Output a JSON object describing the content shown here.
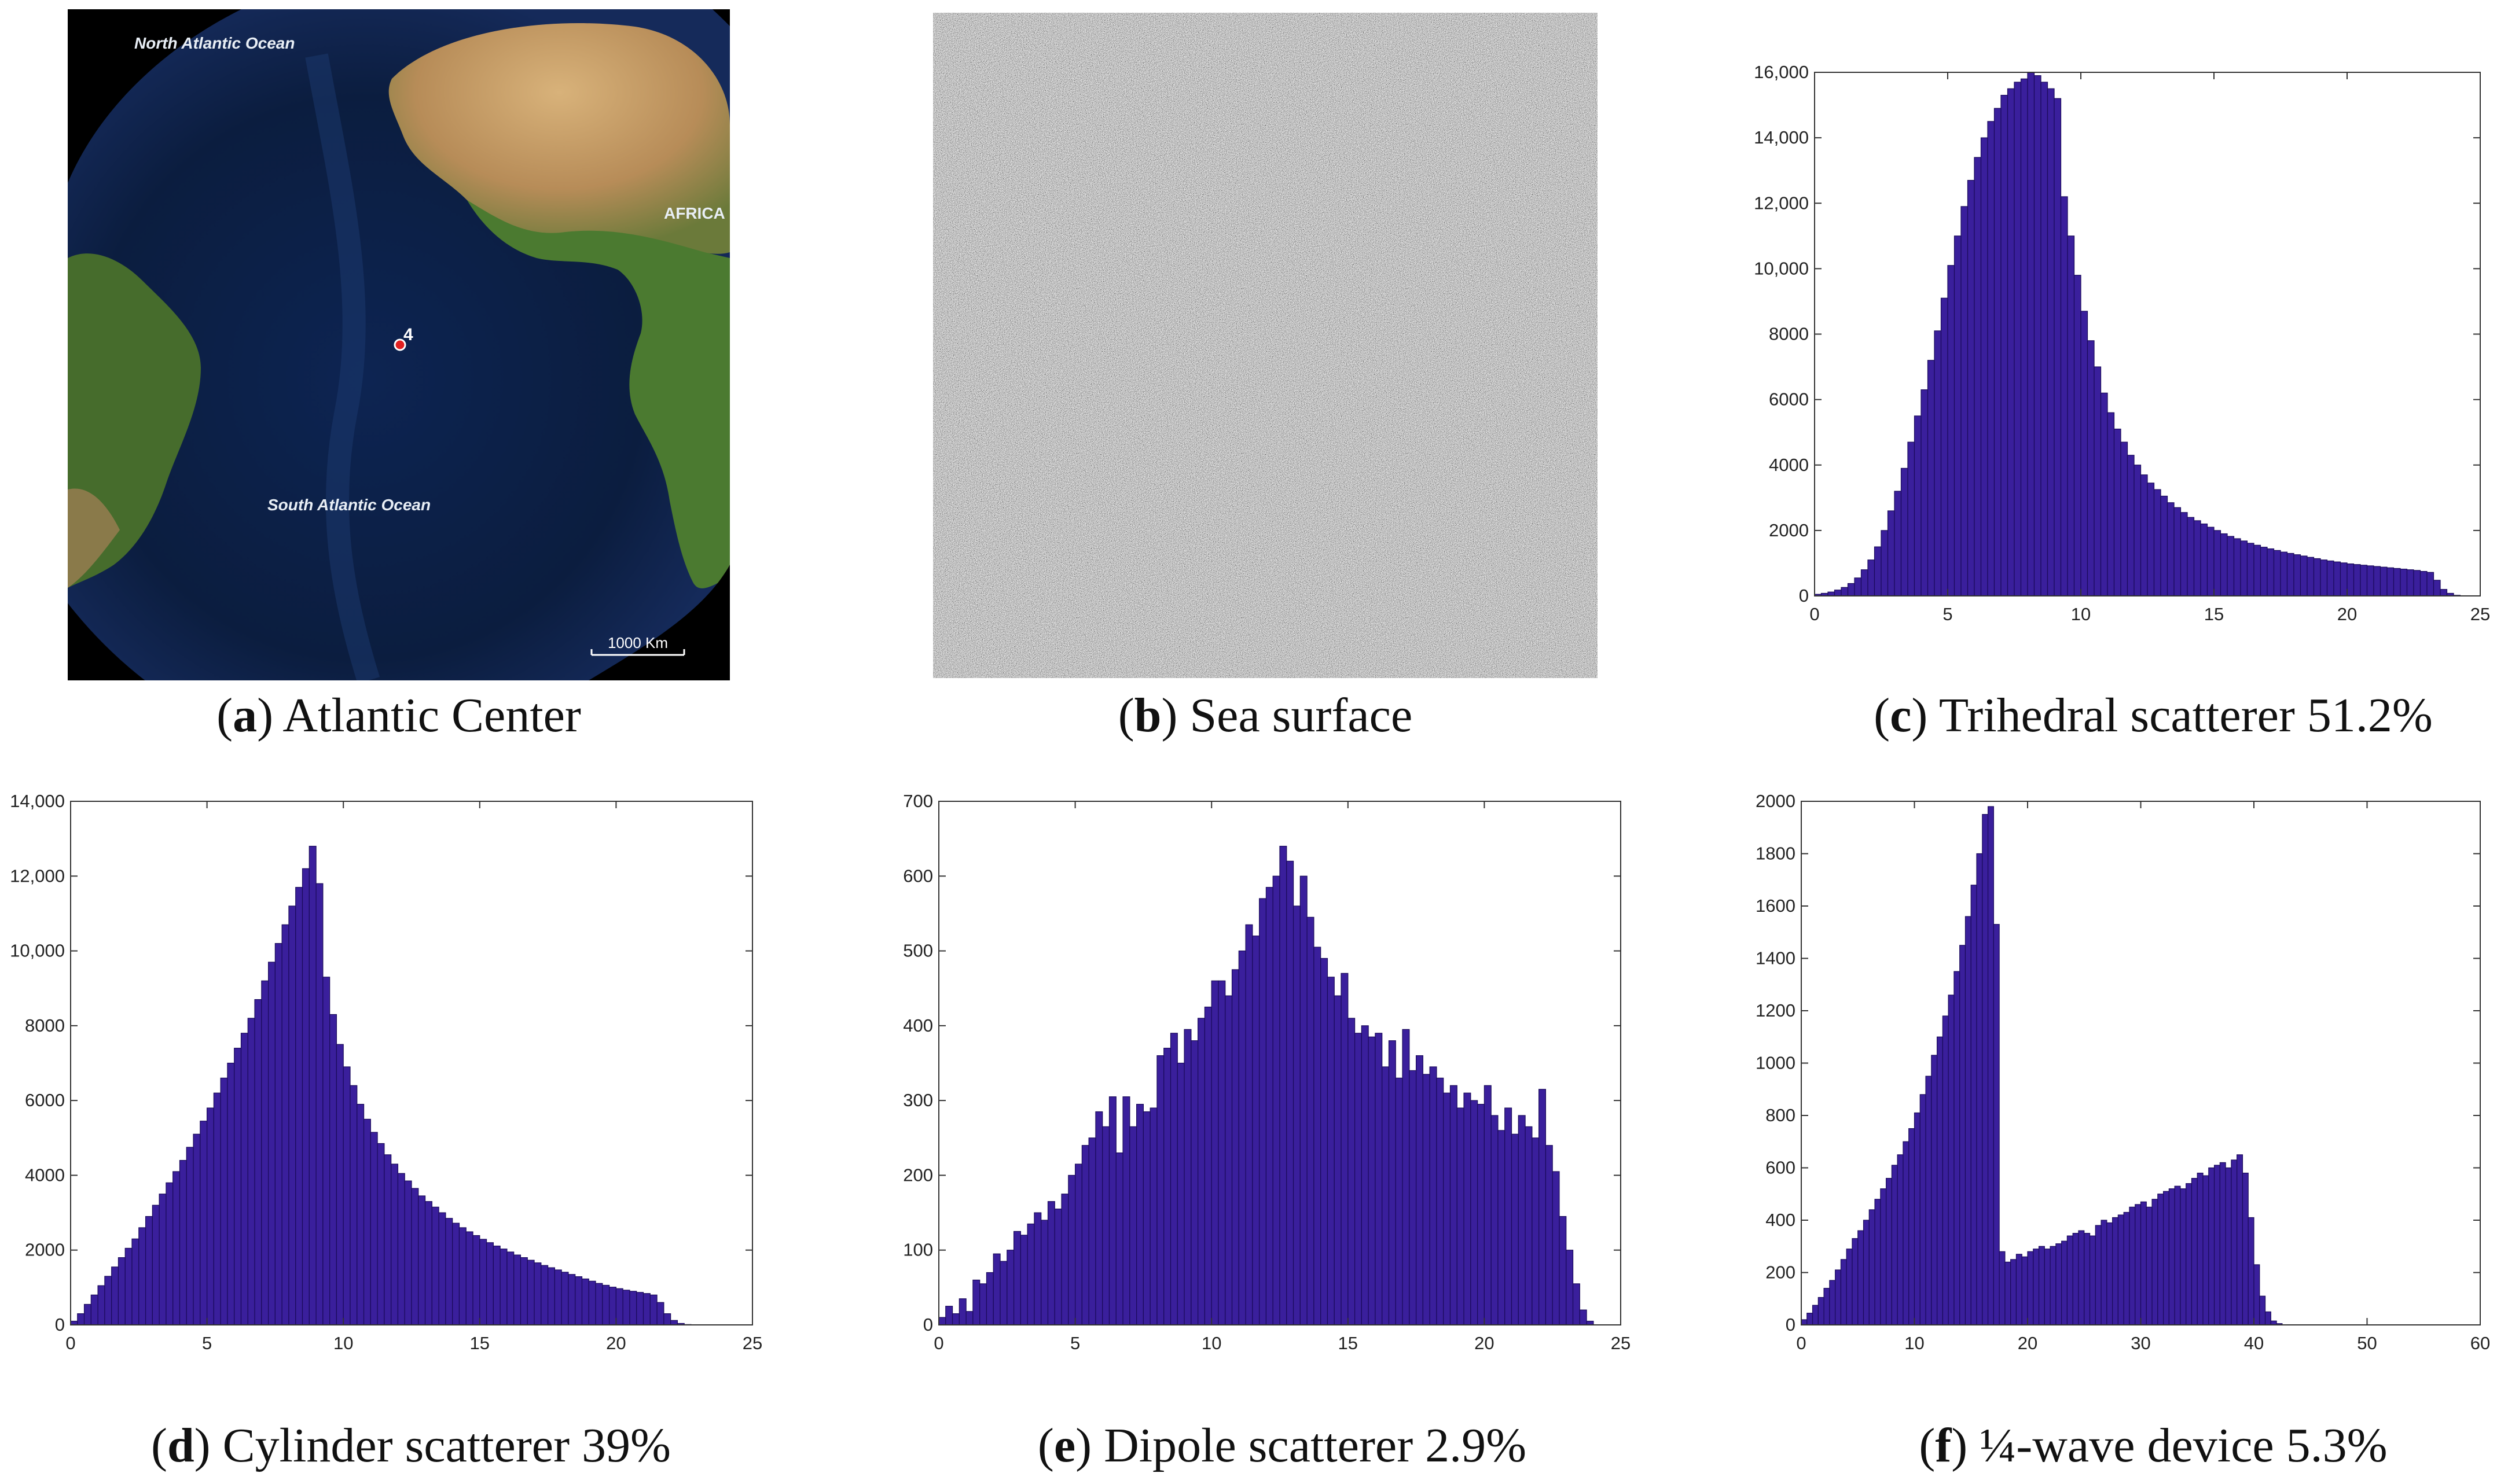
{
  "figure": {
    "panel_a": {
      "letter": "a",
      "caption": "Atlantic Center",
      "map_labels": {
        "north": "North Atlantic Ocean",
        "south": "South Atlantic Ocean",
        "africa": "AFRICA",
        "marker": "4",
        "scale": "1000 Km"
      },
      "colors": {
        "ocean": "#0b1d3f",
        "land": "#8a6a3c",
        "vegetation": "#3f6a2a"
      }
    },
    "panel_b": {
      "letter": "b",
      "caption": "Sea surface"
    },
    "panel_c": {
      "letter": "c",
      "caption": "Trihedral scatterer 51.2%"
    },
    "panel_d": {
      "letter": "d",
      "caption": "Cylinder scatterer 39%"
    },
    "panel_e": {
      "letter": "e",
      "caption": "Dipole scatterer 2.9%"
    },
    "panel_f": {
      "letter": "f",
      "caption": "¼-wave device 5.3%"
    }
  },
  "bar_color": "#3a1f9c",
  "chart_data": [
    {
      "id": "c",
      "type": "bar",
      "title": "Trihedral scatterer 51.2%",
      "xlim": [
        0,
        25
      ],
      "ylim": [
        0,
        16000
      ],
      "xticks": [
        0,
        5,
        10,
        15,
        20,
        25
      ],
      "yticks": [
        0,
        2000,
        4000,
        6000,
        8000,
        10000,
        12000,
        14000,
        16000
      ],
      "ytick_labels": [
        "0",
        "2000",
        "4000",
        "6000",
        "8000",
        "10,000",
        "12,000",
        "14,000",
        "16,000"
      ],
      "bin_start": 0,
      "bin_width": 0.25,
      "values": [
        50,
        80,
        120,
        180,
        260,
        380,
        550,
        800,
        1100,
        1500,
        2000,
        2600,
        3200,
        3900,
        4700,
        5500,
        6300,
        7200,
        8100,
        9100,
        10100,
        11000,
        11900,
        12700,
        13400,
        14000,
        14500,
        14900,
        15300,
        15500,
        15700,
        15800,
        16000,
        15900,
        15700,
        15500,
        15200,
        12200,
        11000,
        9800,
        8700,
        7800,
        7000,
        6200,
        5600,
        5100,
        4700,
        4300,
        4000,
        3700,
        3450,
        3250,
        3050,
        2850,
        2700,
        2550,
        2400,
        2300,
        2200,
        2100,
        2000,
        1900,
        1820,
        1750,
        1680,
        1610,
        1550,
        1490,
        1440,
        1390,
        1340,
        1300,
        1260,
        1220,
        1180,
        1140,
        1100,
        1070,
        1040,
        1010,
        980,
        960,
        940,
        920,
        900,
        880,
        860,
        840,
        820,
        800,
        780,
        750,
        720,
        480,
        200,
        80,
        20,
        0,
        0,
        0,
        0
      ]
    },
    {
      "id": "d",
      "type": "bar",
      "title": "Cylinder scatterer 39%",
      "xlim": [
        0,
        25
      ],
      "ylim": [
        0,
        14000
      ],
      "xticks": [
        0,
        5,
        10,
        15,
        20,
        25
      ],
      "yticks": [
        0,
        2000,
        4000,
        6000,
        8000,
        10000,
        12000,
        14000
      ],
      "ytick_labels": [
        "0",
        "2000",
        "4000",
        "6000",
        "8000",
        "10,000",
        "12,000",
        "14,000"
      ],
      "bin_start": 0,
      "bin_width": 0.25,
      "values": [
        100,
        300,
        550,
        800,
        1050,
        1300,
        1550,
        1800,
        2050,
        2300,
        2600,
        2900,
        3200,
        3500,
        3800,
        4100,
        4400,
        4750,
        5100,
        5450,
        5800,
        6200,
        6600,
        7000,
        7400,
        7800,
        8200,
        8700,
        9200,
        9700,
        10200,
        10700,
        11200,
        11700,
        12200,
        12800,
        11800,
        9300,
        8300,
        7500,
        6900,
        6400,
        5900,
        5500,
        5150,
        4850,
        4550,
        4300,
        4050,
        3850,
        3650,
        3450,
        3300,
        3150,
        3000,
        2850,
        2720,
        2600,
        2490,
        2390,
        2290,
        2200,
        2110,
        2030,
        1950,
        1870,
        1800,
        1730,
        1660,
        1590,
        1530,
        1470,
        1410,
        1350,
        1290,
        1230,
        1170,
        1110,
        1060,
        1010,
        970,
        930,
        900,
        870,
        840,
        800,
        600,
        300,
        120,
        40,
        10,
        0,
        0,
        0,
        0,
        0,
        0,
        0,
        0,
        0,
        0
      ]
    },
    {
      "id": "e",
      "type": "bar",
      "title": "Dipole scatterer 2.9%",
      "xlim": [
        0,
        25
      ],
      "ylim": [
        0,
        700
      ],
      "xticks": [
        0,
        5,
        10,
        15,
        20,
        25
      ],
      "yticks": [
        0,
        100,
        200,
        300,
        400,
        500,
        600,
        700
      ],
      "ytick_labels": [
        "0",
        "100",
        "200",
        "300",
        "400",
        "500",
        "600",
        "700"
      ],
      "bin_start": 0,
      "bin_width": 0.25,
      "values": [
        10,
        25,
        15,
        35,
        18,
        60,
        55,
        70,
        95,
        85,
        100,
        125,
        120,
        135,
        150,
        140,
        165,
        155,
        175,
        200,
        215,
        240,
        250,
        285,
        265,
        305,
        230,
        305,
        265,
        295,
        285,
        290,
        360,
        370,
        390,
        350,
        395,
        380,
        410,
        425,
        460,
        460,
        440,
        475,
        500,
        535,
        520,
        570,
        585,
        600,
        640,
        620,
        560,
        600,
        545,
        505,
        490,
        465,
        440,
        470,
        410,
        390,
        400,
        385,
        390,
        345,
        380,
        330,
        395,
        340,
        360,
        335,
        345,
        330,
        310,
        320,
        290,
        310,
        300,
        295,
        320,
        280,
        260,
        290,
        255,
        280,
        265,
        250,
        315,
        240,
        205,
        145,
        100,
        55,
        20,
        5,
        0,
        0,
        0,
        0
      ]
    },
    {
      "id": "f",
      "type": "bar",
      "title": "¼-wave device 5.3%",
      "xlim": [
        0,
        60
      ],
      "ylim": [
        0,
        2000
      ],
      "xticks": [
        0,
        10,
        20,
        30,
        40,
        50,
        60
      ],
      "yticks": [
        0,
        200,
        400,
        600,
        800,
        1000,
        1200,
        1400,
        1600,
        1800,
        2000
      ],
      "ytick_labels": [
        "0",
        "200",
        "400",
        "600",
        "800",
        "1000",
        "1200",
        "1400",
        "1600",
        "1800",
        "2000"
      ],
      "bin_start": 0,
      "bin_width": 0.5,
      "values": [
        20,
        45,
        75,
        105,
        140,
        170,
        210,
        250,
        290,
        330,
        360,
        400,
        440,
        480,
        520,
        560,
        610,
        650,
        700,
        750,
        810,
        880,
        950,
        1030,
        1100,
        1180,
        1260,
        1350,
        1450,
        1560,
        1680,
        1800,
        1950,
        1980,
        1530,
        280,
        240,
        250,
        270,
        260,
        280,
        290,
        300,
        290,
        300,
        310,
        320,
        340,
        350,
        360,
        350,
        340,
        380,
        400,
        390,
        410,
        420,
        430,
        450,
        460,
        470,
        450,
        480,
        500,
        510,
        520,
        530,
        520,
        540,
        560,
        580,
        570,
        600,
        610,
        620,
        600,
        630,
        650,
        580,
        410,
        230,
        110,
        50,
        15,
        5,
        0,
        0,
        0,
        0,
        0,
        0,
        0,
        0,
        0,
        0,
        0,
        0,
        0,
        0,
        0,
        0,
        0,
        0,
        0,
        0,
        0,
        0,
        0,
        0,
        0,
        0,
        0,
        0,
        0,
        0,
        0,
        0,
        0,
        0,
        0
      ]
    }
  ]
}
